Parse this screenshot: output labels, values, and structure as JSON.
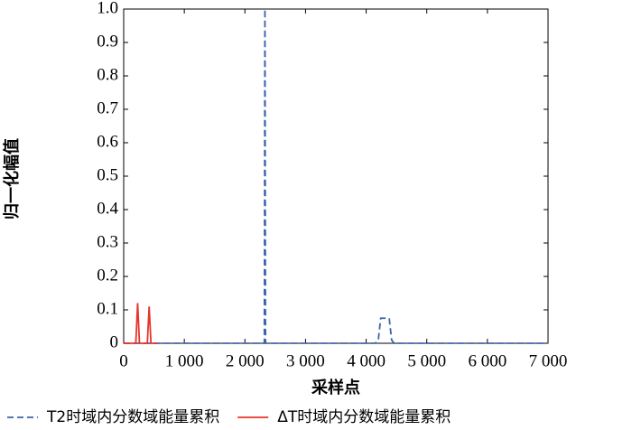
{
  "chart_data": {
    "type": "line",
    "xlabel": "采样点",
    "ylabel": "归一化幅值",
    "xlim": [
      0,
      7000
    ],
    "ylim": [
      0,
      1
    ],
    "xticks": [
      0,
      {
        "value": 1000,
        "label": "1 000"
      },
      {
        "value": 2000,
        "label": "2 000"
      },
      {
        "value": 3000,
        "label": "3 000"
      },
      {
        "value": 4000,
        "label": "4 000"
      },
      {
        "value": 5000,
        "label": "5 000"
      },
      {
        "value": 6000,
        "label": "6 000"
      },
      {
        "value": 7000,
        "label": "7 000"
      }
    ],
    "yticks": [
      0,
      0.1,
      0.2,
      0.3,
      0.4,
      0.5,
      0.6,
      0.7,
      0.8,
      0.9,
      {
        "value": 1,
        "label": "1.0"
      }
    ],
    "grid": false,
    "series": [
      {
        "name": "T2时域内分数域能量累积",
        "color": "#3b64ad",
        "dash": true,
        "x": [
          0,
          2320,
          2330,
          2340,
          4150,
          4200,
          4240,
          4380,
          4420,
          4460,
          7000
        ],
        "values": [
          0,
          0,
          1,
          0,
          0,
          0.01,
          0.075,
          0.075,
          0.01,
          0,
          0
        ]
      },
      {
        "name": "ΔT时域内分数域能量累积",
        "color": "#e8342a",
        "dash": false,
        "x": [
          0,
          200,
          230,
          260,
          390,
          420,
          450,
          550
        ],
        "values": [
          0,
          0,
          0.12,
          0,
          0,
          0.11,
          0,
          0
        ]
      }
    ]
  }
}
